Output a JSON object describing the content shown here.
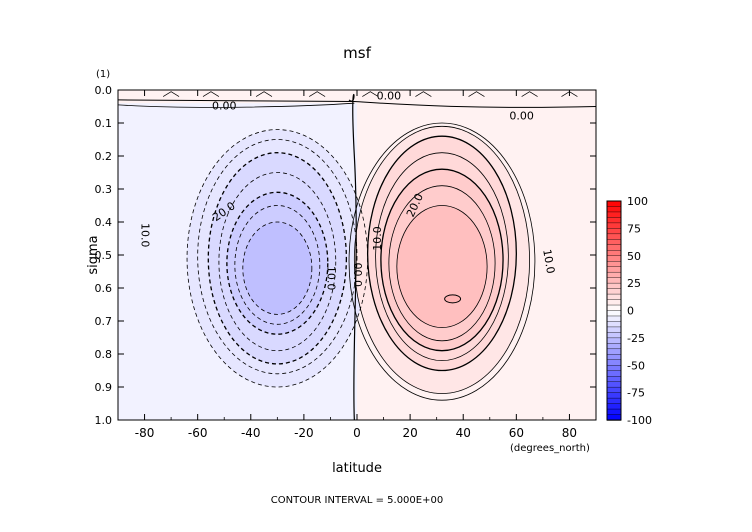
{
  "chart_data": {
    "type": "heatmap",
    "title": "msf",
    "units_label": "(1)",
    "xlabel": "latitude",
    "x_units": "(degrees_north)",
    "ylabel": "sigma",
    "xlim": [
      -90,
      90
    ],
    "ylim": [
      0.0,
      1.0
    ],
    "y_inverted": true,
    "x_ticks": [
      "-80",
      "-60",
      "-40",
      "-20",
      "0",
      "20",
      "40",
      "60",
      "80"
    ],
    "x_tick_values": [
      -80,
      -60,
      -40,
      -20,
      0,
      20,
      40,
      60,
      80
    ],
    "y_ticks": [
      "0.0",
      "0.1",
      "0.2",
      "0.3",
      "0.4",
      "0.5",
      "0.6",
      "0.7",
      "0.8",
      "0.9",
      "1.0"
    ],
    "y_tick_values": [
      0.0,
      0.1,
      0.2,
      0.3,
      0.4,
      0.5,
      0.6,
      0.7,
      0.8,
      0.9,
      1.0
    ],
    "footer": "CONTOUR INTERVAL = 5.000E+00",
    "contour_interval": 5.0,
    "colorbar": {
      "min": -100,
      "max": 100,
      "labels": [
        "100",
        "75",
        "50",
        "25",
        "0",
        "-25",
        "-50",
        "-75",
        "-100"
      ],
      "label_values": [
        100,
        75,
        50,
        25,
        0,
        -25,
        -50,
        -75,
        -100
      ],
      "negative_color": "#0000ff",
      "positive_color": "#ff0000"
    },
    "cells": {
      "south_cell": {
        "center_lat": -30,
        "center_sigma": 0.56,
        "peak": -30
      },
      "north_cell": {
        "center_lat": 32,
        "center_sigma": 0.56,
        "peak": 30
      }
    },
    "contour_labels": [
      {
        "text": "0.00",
        "lat": -50,
        "sigma": 0.05
      },
      {
        "text": "0.00",
        "lat": 12,
        "sigma": 0.02
      },
      {
        "text": "0.00",
        "lat": 62,
        "sigma": 0.08
      },
      {
        "text": "00.0",
        "lat": 0,
        "sigma": 0.56
      },
      {
        "text": "10.0",
        "lat": -80,
        "sigma": 0.44
      },
      {
        "text": "20.0",
        "lat": -50,
        "sigma": 0.37
      },
      {
        "text": "10.0",
        "lat": -10,
        "sigma": 0.57
      },
      {
        "text": "10.0",
        "lat": 8,
        "sigma": 0.45
      },
      {
        "text": "20.0",
        "lat": 22,
        "sigma": 0.35
      },
      {
        "text": "10.0",
        "lat": 72,
        "sigma": 0.52
      }
    ]
  }
}
